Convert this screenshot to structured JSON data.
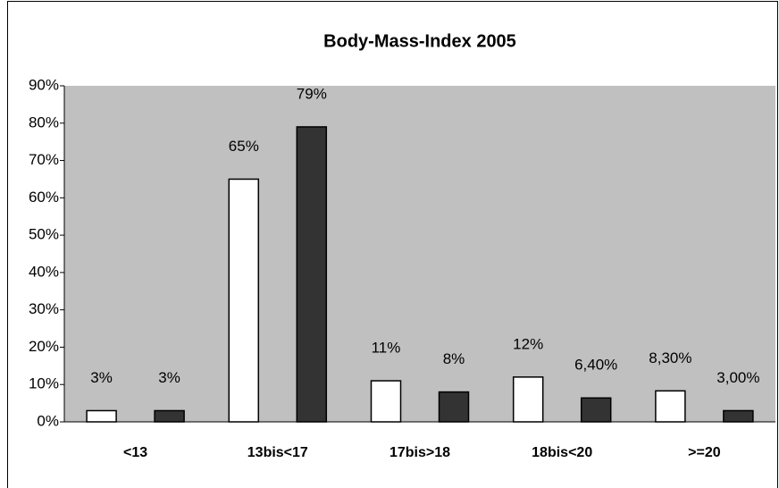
{
  "chart_data": {
    "type": "bar",
    "title": "Body-Mass-Index 2005",
    "categories": [
      "<13",
      "13bis<17",
      "17bis>18",
      "18bis<20",
      ">=20"
    ],
    "series": [
      {
        "color": "#ffffff",
        "values": [
          3,
          65,
          11,
          12,
          8.3
        ],
        "value_labels": [
          "3%",
          "65%",
          "11%",
          "12%",
          "8,30%"
        ]
      },
      {
        "color": "#333333",
        "values": [
          3,
          79,
          8,
          6.4,
          3
        ],
        "value_labels": [
          "3%",
          "79%",
          "8%",
          "6,40%",
          "3,00%"
        ]
      }
    ],
    "ylim": [
      0,
      90
    ],
    "yticks": [
      {
        "value": 0,
        "label": "0%"
      },
      {
        "value": 10,
        "label": "10%"
      },
      {
        "value": 20,
        "label": "20%"
      },
      {
        "value": 30,
        "label": "30%"
      },
      {
        "value": 40,
        "label": "40%"
      },
      {
        "value": 50,
        "label": "50%"
      },
      {
        "value": 60,
        "label": "60%"
      },
      {
        "value": 70,
        "label": "70%"
      },
      {
        "value": 80,
        "label": "80%"
      },
      {
        "value": 90,
        "label": "90%"
      }
    ],
    "plot_background": "#c0c0c0"
  }
}
